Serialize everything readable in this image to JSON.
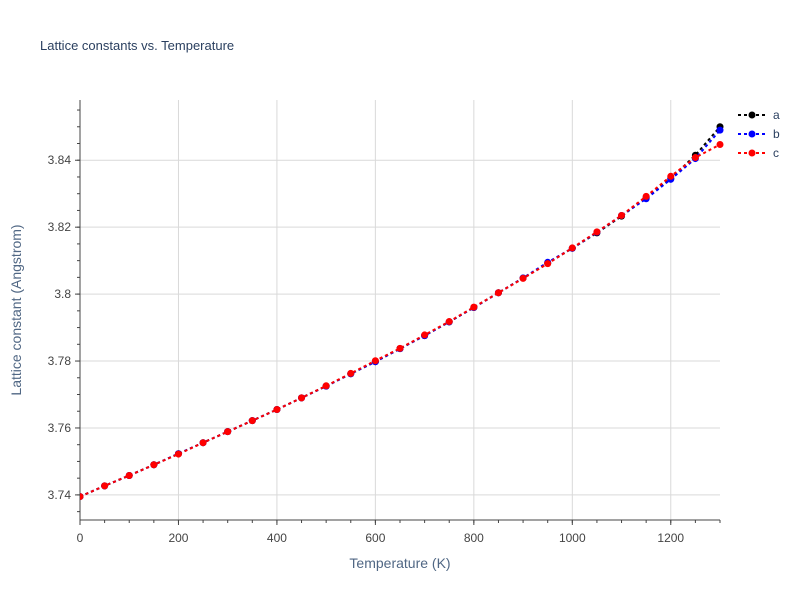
{
  "chart_data": {
    "type": "line",
    "title": "Lattice constants vs. Temperature",
    "xlabel": "Temperature (K)",
    "ylabel": "Lattice constant (Angstrom)",
    "xlim": [
      0,
      1300
    ],
    "ylim": [
      3.7325,
      3.858
    ],
    "xticks": [
      0,
      200,
      400,
      600,
      800,
      1000,
      1200
    ],
    "yticks": [
      3.74,
      3.76,
      3.78,
      3.8,
      3.82,
      3.84
    ],
    "ytick_labels": [
      "3.74",
      "3.76",
      "3.78",
      "3.8",
      "3.82",
      "3.84"
    ],
    "grid": true,
    "legend": "top-right",
    "series": [
      {
        "name": "a",
        "color": "#000000",
        "x": [
          0,
          50,
          100,
          150,
          200,
          250,
          300,
          350,
          400,
          450,
          500,
          550,
          600,
          650,
          700,
          750,
          800,
          850,
          900,
          950,
          1000,
          1050,
          1100,
          1150,
          1200,
          1250,
          1300
        ],
        "y": [
          3.7395,
          3.7427,
          3.7458,
          3.749,
          3.7523,
          3.7556,
          3.7589,
          3.7622,
          3.7655,
          3.769,
          3.7725,
          3.7762,
          3.7798,
          3.7837,
          3.7876,
          3.7917,
          3.796,
          3.8004,
          3.8048,
          3.8092,
          3.8137,
          3.8183,
          3.8233,
          3.8288,
          3.8345,
          3.8415,
          3.85
        ]
      },
      {
        "name": "b",
        "color": "#0000ff",
        "x": [
          0,
          50,
          100,
          150,
          200,
          250,
          300,
          350,
          400,
          450,
          500,
          550,
          600,
          650,
          700,
          750,
          800,
          850,
          900,
          950,
          1000,
          1050,
          1100,
          1150,
          1200,
          1250,
          1300
        ],
        "y": [
          3.7395,
          3.7427,
          3.7458,
          3.749,
          3.7523,
          3.7556,
          3.7589,
          3.7622,
          3.7655,
          3.769,
          3.7725,
          3.7762,
          3.7798,
          3.7837,
          3.7876,
          3.7917,
          3.796,
          3.8004,
          3.8048,
          3.8095,
          3.8137,
          3.8185,
          3.8235,
          3.8285,
          3.8343,
          3.8405,
          3.849
        ]
      },
      {
        "name": "c",
        "color": "#ff0000",
        "x": [
          0,
          50,
          100,
          150,
          200,
          250,
          300,
          350,
          400,
          450,
          500,
          550,
          600,
          650,
          700,
          750,
          800,
          850,
          900,
          950,
          1000,
          1050,
          1100,
          1150,
          1200,
          1250,
          1300
        ],
        "y": [
          3.7395,
          3.7427,
          3.7458,
          3.749,
          3.7522,
          3.7556,
          3.7589,
          3.7622,
          3.7655,
          3.769,
          3.7726,
          3.7763,
          3.7801,
          3.7838,
          3.7878,
          3.7918,
          3.7961,
          3.8004,
          3.8047,
          3.8091,
          3.8138,
          3.8186,
          3.8235,
          3.8292,
          3.8352,
          3.8408,
          3.8447
        ]
      }
    ]
  }
}
